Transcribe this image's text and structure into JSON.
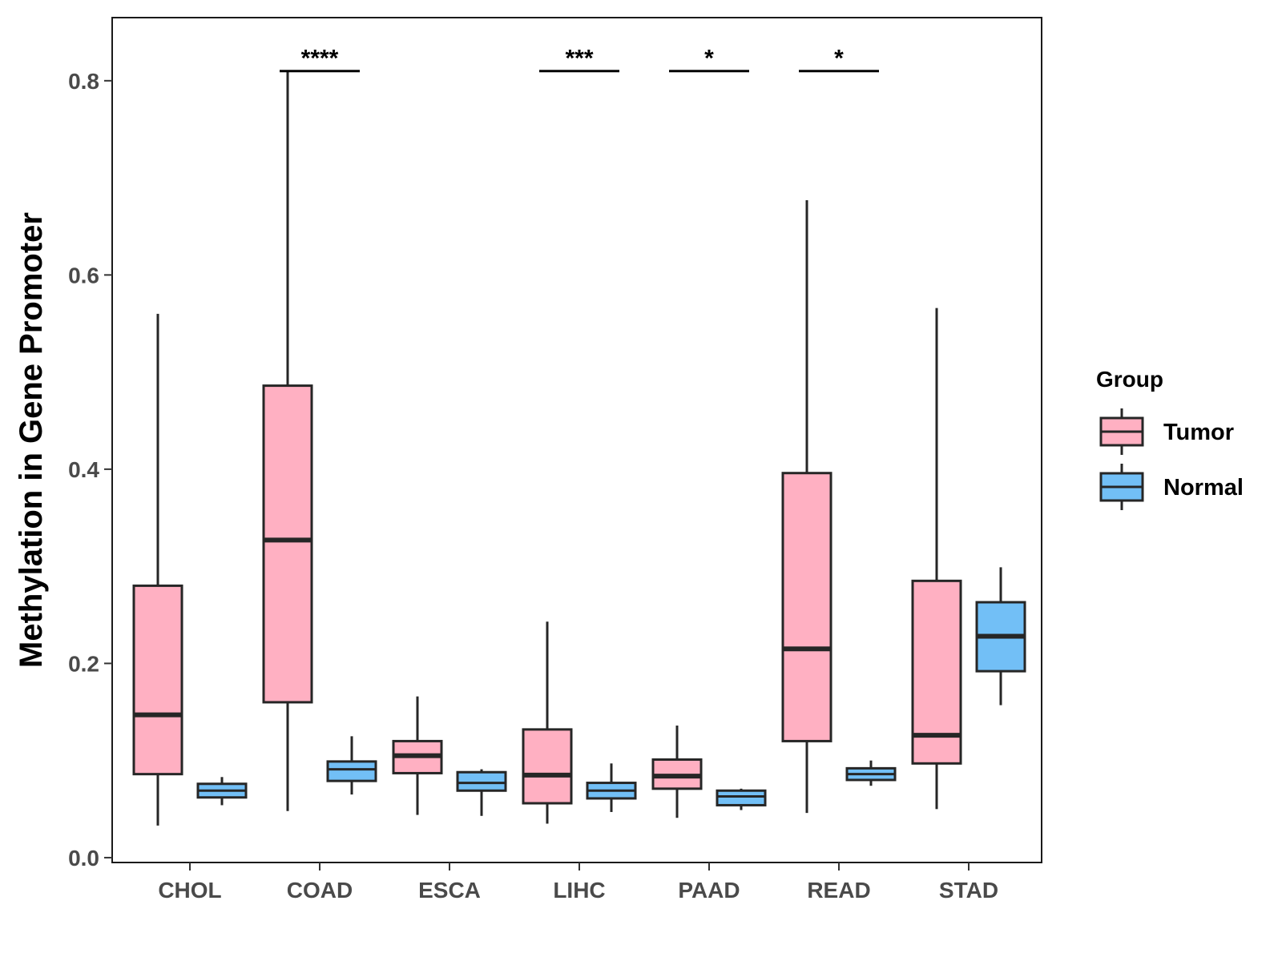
{
  "chart_data": {
    "type": "boxplot",
    "title": "",
    "xlabel": "",
    "ylabel": "Methylation in Gene Promoter",
    "ylim": [
      -0.005,
      0.865
    ],
    "yticks": [
      0.0,
      0.2,
      0.4,
      0.6,
      0.8
    ],
    "ytick_labels": [
      "0.0",
      "0.2",
      "0.4",
      "0.6",
      "0.8"
    ],
    "categories": [
      "CHOL",
      "COAD",
      "ESCA",
      "LIHC",
      "PAAD",
      "READ",
      "STAD"
    ],
    "legend": {
      "title": "Group",
      "position": "right",
      "entries": [
        {
          "name": "Tumor",
          "color": "#FFB0C2"
        },
        {
          "name": "Normal",
          "color": "#72BFF6"
        }
      ]
    },
    "series": [
      {
        "name": "Tumor",
        "color": "#FFB0C2",
        "boxes": [
          {
            "category": "CHOL",
            "min": 0.033,
            "q1": 0.086,
            "median": 0.147,
            "q3": 0.28,
            "max": 0.56
          },
          {
            "category": "COAD",
            "min": 0.048,
            "q1": 0.16,
            "median": 0.327,
            "q3": 0.486,
            "max": 0.81
          },
          {
            "category": "ESCA",
            "min": 0.044,
            "q1": 0.087,
            "median": 0.105,
            "q3": 0.12,
            "max": 0.166
          },
          {
            "category": "LIHC",
            "min": 0.035,
            "q1": 0.056,
            "median": 0.085,
            "q3": 0.132,
            "max": 0.243
          },
          {
            "category": "PAAD",
            "min": 0.041,
            "q1": 0.071,
            "median": 0.084,
            "q3": 0.101,
            "max": 0.136
          },
          {
            "category": "READ",
            "min": 0.046,
            "q1": 0.12,
            "median": 0.215,
            "q3": 0.396,
            "max": 0.677
          },
          {
            "category": "STAD",
            "min": 0.05,
            "q1": 0.097,
            "median": 0.126,
            "q3": 0.285,
            "max": 0.566
          }
        ]
      },
      {
        "name": "Normal",
        "color": "#72BFF6",
        "boxes": [
          {
            "category": "CHOL",
            "min": 0.054,
            "q1": 0.062,
            "median": 0.069,
            "q3": 0.076,
            "max": 0.083
          },
          {
            "category": "COAD",
            "min": 0.065,
            "q1": 0.079,
            "median": 0.091,
            "q3": 0.099,
            "max": 0.125
          },
          {
            "category": "ESCA",
            "min": 0.043,
            "q1": 0.069,
            "median": 0.077,
            "q3": 0.088,
            "max": 0.091
          },
          {
            "category": "LIHC",
            "min": 0.047,
            "q1": 0.061,
            "median": 0.069,
            "q3": 0.077,
            "max": 0.097
          },
          {
            "category": "PAAD",
            "min": 0.049,
            "q1": 0.054,
            "median": 0.063,
            "q3": 0.069,
            "max": 0.071
          },
          {
            "category": "READ",
            "min": 0.074,
            "q1": 0.08,
            "median": 0.086,
            "q3": 0.092,
            "max": 0.1
          },
          {
            "category": "STAD",
            "min": 0.157,
            "q1": 0.192,
            "median": 0.228,
            "q3": 0.263,
            "max": 0.299
          }
        ]
      }
    ],
    "significance": [
      {
        "category": "COAD",
        "label": "****"
      },
      {
        "category": "LIHC",
        "label": "***"
      },
      {
        "category": "PAAD",
        "label": "*"
      },
      {
        "category": "READ",
        "label": "*"
      }
    ],
    "significance_level": 0.81
  }
}
